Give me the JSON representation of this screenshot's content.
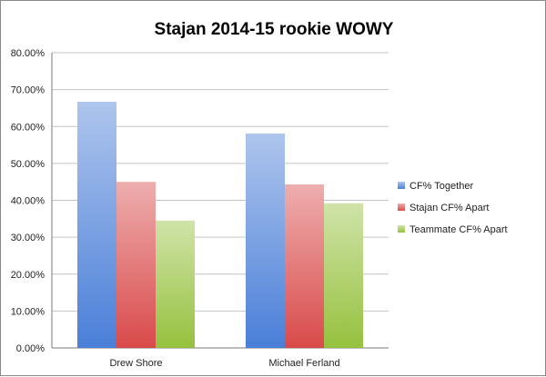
{
  "chart_data": {
    "type": "bar",
    "title": "Stajan 2014-15 rookie WOWY",
    "xlabel": "",
    "ylabel": "",
    "categories": [
      "Drew Shore",
      "Michael Ferland"
    ],
    "series": [
      {
        "name": "CF% Together",
        "values": [
          66.7,
          58.1
        ],
        "color": "#4a7fd8"
      },
      {
        "name": "Stajan CF% Apart",
        "values": [
          45.0,
          44.3
        ],
        "color": "#d94a4a"
      },
      {
        "name": "Teammate CF% Apart",
        "values": [
          34.5,
          39.2
        ],
        "color": "#96c13e"
      }
    ],
    "ylim": [
      0,
      80
    ],
    "yticks": [
      0,
      10,
      20,
      30,
      40,
      50,
      60,
      70,
      80
    ],
    "ytick_labels": [
      "0.00%",
      "10.00%",
      "20.00%",
      "30.00%",
      "40.00%",
      "50.00%",
      "60.00%",
      "70.00%",
      "80.00%"
    ],
    "grid": true,
    "legend_position": "right"
  }
}
